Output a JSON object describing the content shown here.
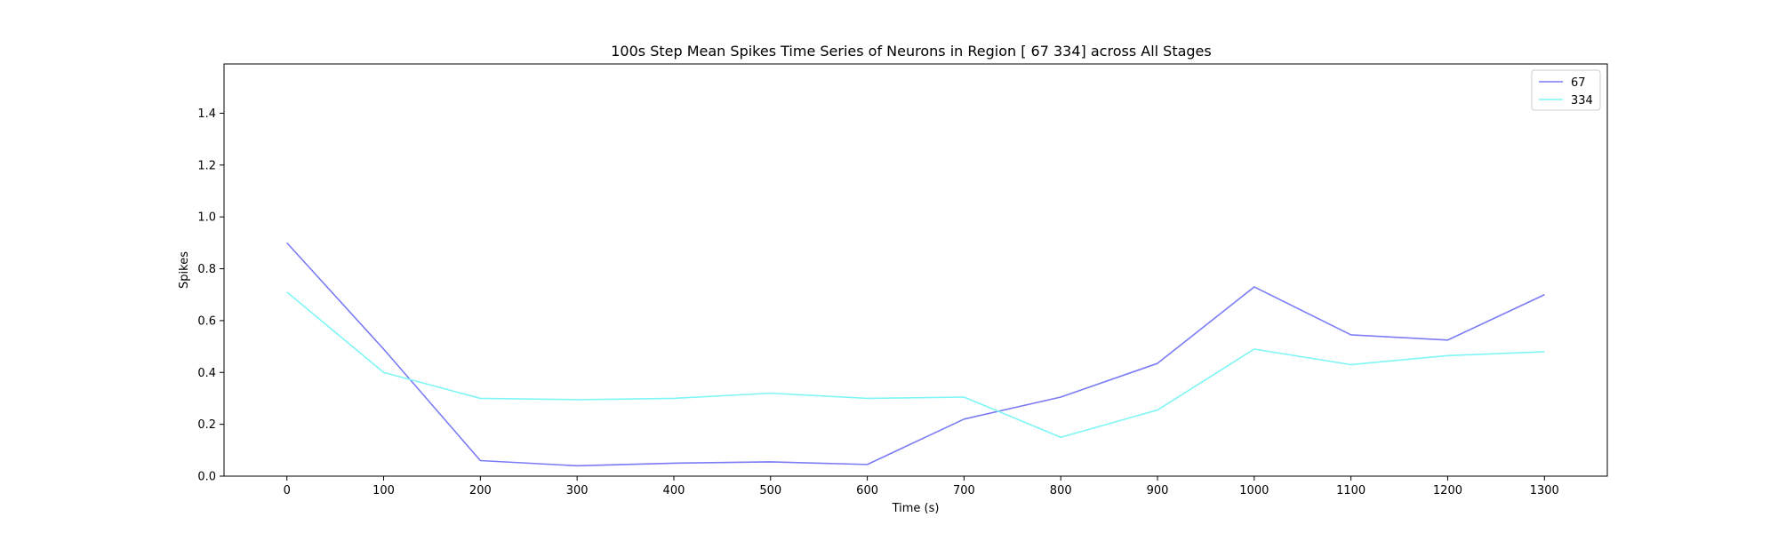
{
  "chart_data": {
    "type": "line",
    "title": "100s Step Mean Spikes Time Series of Neurons in Region [ 67 334] across All Stages",
    "xlabel": "Time (s)",
    "ylabel": "Spikes",
    "x": [
      0,
      100,
      200,
      300,
      400,
      500,
      600,
      700,
      800,
      900,
      1000,
      1100,
      1200,
      1300
    ],
    "xticks": [
      "0",
      "100",
      "200",
      "300",
      "400",
      "500",
      "600",
      "700",
      "800",
      "900",
      "1000",
      "1100",
      "1200",
      "1300"
    ],
    "yticks": [
      "0.0",
      "0.2",
      "0.4",
      "0.6",
      "0.8",
      "1.0",
      "1.2",
      "1.4"
    ],
    "xlim": [
      -65,
      1365
    ],
    "ylim": [
      0,
      1.59
    ],
    "grid": false,
    "legend_position": "upper right",
    "series": [
      {
        "name": "67",
        "color": "#7b7bf5",
        "values": [
          0.9,
          0.49,
          0.06,
          0.04,
          0.05,
          0.055,
          0.045,
          0.22,
          0.305,
          0.435,
          0.73,
          0.545,
          0.525,
          0.7
        ]
      },
      {
        "name": "334",
        "color": "#7ff5f5",
        "values": [
          0.71,
          0.4,
          0.3,
          0.295,
          0.3,
          0.32,
          0.3,
          0.305,
          0.15,
          0.255,
          0.49,
          0.43,
          0.465,
          0.48
        ]
      }
    ]
  }
}
